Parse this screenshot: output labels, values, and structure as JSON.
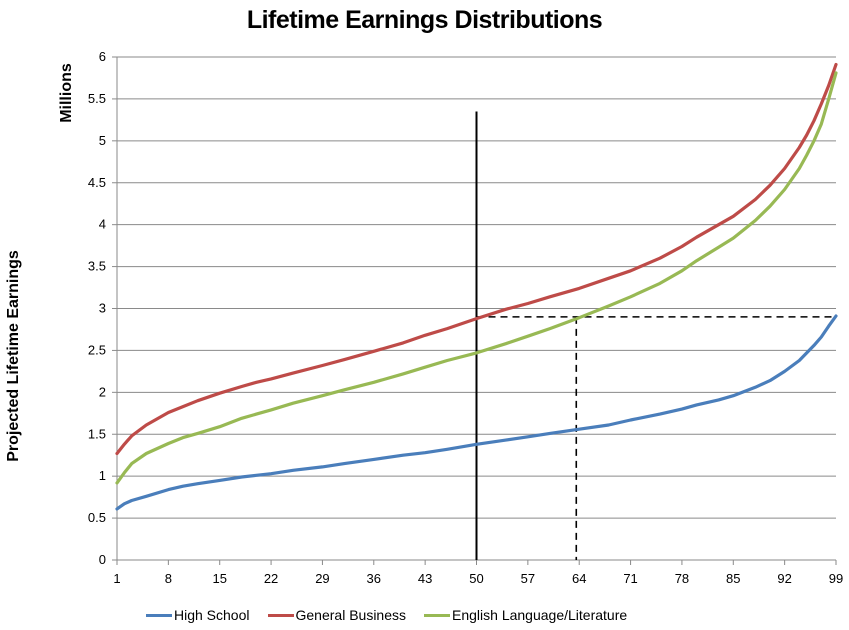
{
  "chart_data": {
    "type": "line",
    "title": "Lifetime Earnings Distributions",
    "xlabel": "",
    "ylabel": "Projected Lifetime Earnings",
    "y_unit": "Millions",
    "xlim": [
      1,
      99
    ],
    "ylim": [
      0,
      6
    ],
    "x_ticks": [
      "1",
      "8",
      "15",
      "22",
      "29",
      "36",
      "43",
      "50",
      "57",
      "64",
      "71",
      "78",
      "85",
      "92",
      "99"
    ],
    "y_ticks": [
      "0",
      "0.5",
      "1",
      "1.5",
      "2",
      "2.5",
      "3",
      "3.5",
      "4",
      "4.5",
      "5",
      "5.5",
      "6"
    ],
    "grid": true,
    "legend_position": "bottom",
    "x": [
      1,
      2,
      3,
      5,
      8,
      10,
      12,
      15,
      18,
      20,
      22,
      25,
      29,
      32,
      36,
      40,
      43,
      46,
      50,
      54,
      57,
      60,
      64,
      68,
      71,
      75,
      78,
      80,
      83,
      85,
      88,
      90,
      92,
      94,
      95,
      96,
      97,
      98,
      99
    ],
    "series": [
      {
        "name": "High School",
        "color": "#4a7ebb",
        "values": [
          0.61,
          0.67,
          0.71,
          0.76,
          0.84,
          0.88,
          0.91,
          0.95,
          0.99,
          1.01,
          1.03,
          1.07,
          1.11,
          1.15,
          1.2,
          1.25,
          1.28,
          1.32,
          1.38,
          1.43,
          1.47,
          1.51,
          1.56,
          1.61,
          1.67,
          1.74,
          1.8,
          1.85,
          1.91,
          1.96,
          2.06,
          2.14,
          2.25,
          2.38,
          2.47,
          2.56,
          2.66,
          2.79,
          2.91
        ]
      },
      {
        "name": "General Business",
        "color": "#be4b48",
        "values": [
          1.27,
          1.38,
          1.48,
          1.61,
          1.76,
          1.83,
          1.9,
          1.99,
          2.07,
          2.12,
          2.16,
          2.23,
          2.32,
          2.39,
          2.49,
          2.59,
          2.68,
          2.76,
          2.88,
          2.99,
          3.06,
          3.14,
          3.24,
          3.36,
          3.45,
          3.6,
          3.74,
          3.85,
          4.0,
          4.1,
          4.3,
          4.47,
          4.67,
          4.92,
          5.07,
          5.24,
          5.44,
          5.66,
          5.91
        ]
      },
      {
        "name": "English Language/Literature",
        "color": "#98b954",
        "values": [
          0.92,
          1.04,
          1.15,
          1.27,
          1.39,
          1.46,
          1.51,
          1.59,
          1.69,
          1.74,
          1.79,
          1.87,
          1.96,
          2.03,
          2.12,
          2.22,
          2.3,
          2.38,
          2.47,
          2.58,
          2.67,
          2.76,
          2.89,
          3.03,
          3.14,
          3.3,
          3.45,
          3.57,
          3.73,
          3.84,
          4.05,
          4.22,
          4.42,
          4.67,
          4.83,
          5.0,
          5.2,
          5.5,
          5.81
        ]
      }
    ],
    "annotations": {
      "vertical_line_x": 50,
      "dashed_reference_y": 2.9,
      "dashed_drop_x": 63.6
    }
  }
}
